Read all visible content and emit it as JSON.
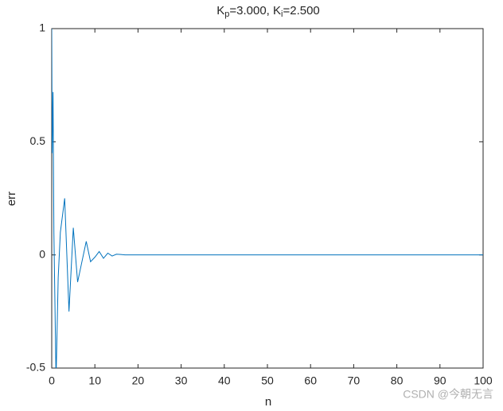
{
  "chart_data": {
    "type": "line",
    "title": [
      "K",
      "p",
      "=3.000, K",
      "i",
      "=2.500"
    ],
    "xlabel": "n",
    "ylabel": "err",
    "x": [
      0,
      0.1,
      0.3,
      0.5,
      1,
      1.5,
      2,
      3,
      3.5,
      4,
      5,
      6,
      7,
      8,
      9,
      10,
      11,
      12,
      13,
      14,
      15,
      16,
      17,
      20,
      100
    ],
    "series": [
      {
        "color": "#0072bd",
        "values": [
          1,
          0.45,
          0.72,
          0.1,
          -0.55,
          -0.1,
          0.1,
          0.25,
          0,
          -0.25,
          0.12,
          -0.12,
          -0.03,
          0.06,
          -0.03,
          -0.01,
          0.015,
          -0.015,
          0.008,
          -0.005,
          0.003,
          0.002,
          0,
          0,
          0
        ]
      }
    ],
    "xlim": [
      0,
      100
    ],
    "xticks": [
      0,
      10,
      20,
      30,
      40,
      50,
      60,
      70,
      80,
      90,
      100
    ],
    "ylim": [
      -0.5,
      1
    ],
    "yticks": [
      -0.5,
      0,
      0.5,
      1
    ],
    "grid": false
  },
  "watermark": "CSDN @今朝无言"
}
